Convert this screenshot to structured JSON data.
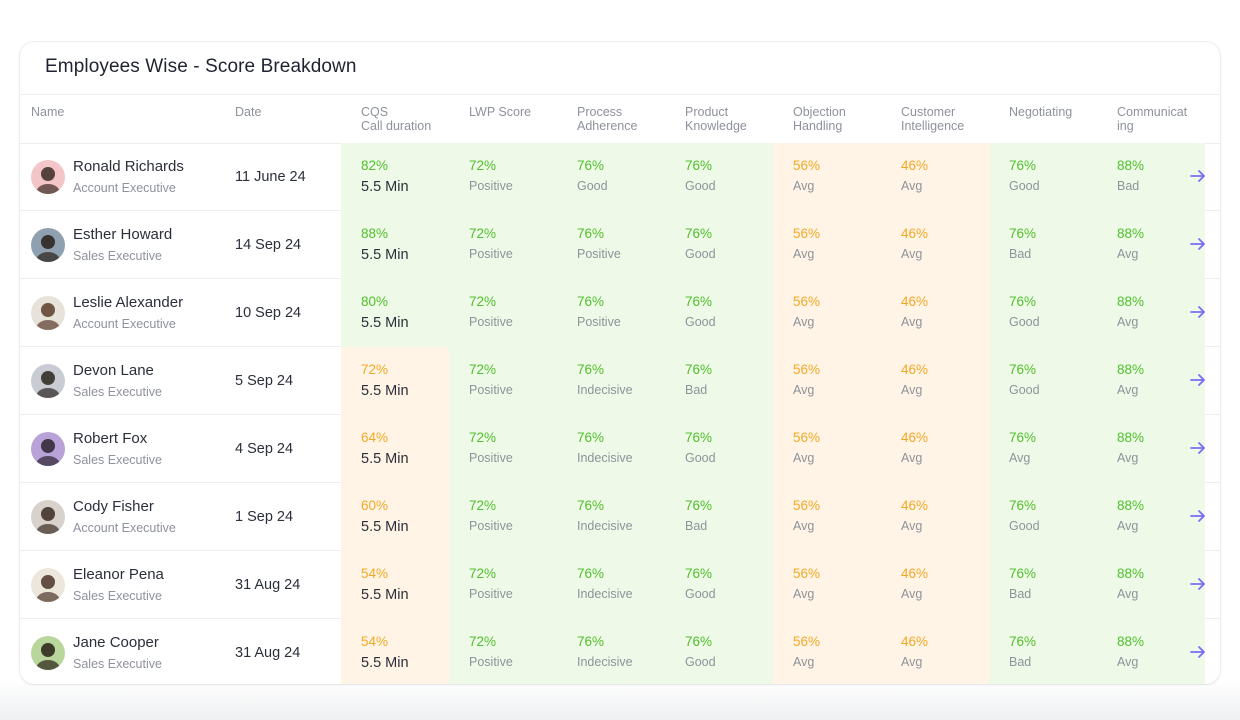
{
  "title": "Employees Wise - Score Breakdown",
  "columns": [
    {
      "key": "name",
      "lines": [
        "Name"
      ]
    },
    {
      "key": "date",
      "lines": [
        "Date"
      ]
    },
    {
      "key": "cqs",
      "lines": [
        "CQS",
        "Call duration"
      ]
    },
    {
      "key": "lwp",
      "lines": [
        "LWP Score"
      ]
    },
    {
      "key": "process",
      "lines": [
        "Process",
        "Adherence"
      ]
    },
    {
      "key": "product",
      "lines": [
        "Product",
        "Knowledge"
      ]
    },
    {
      "key": "objection",
      "lines": [
        "Objection",
        "Handling"
      ]
    },
    {
      "key": "customer",
      "lines": [
        "Customer",
        "Intelligence"
      ]
    },
    {
      "key": "negotiating",
      "lines": [
        "Negotiating"
      ]
    },
    {
      "key": "communicating",
      "lines": [
        "Communicat",
        "ing"
      ]
    }
  ],
  "colors": {
    "green_text": "#4fbf2c",
    "orange_text": "#f3a825",
    "green_bg": "#eefae7",
    "orange_bg": "#fff4e5",
    "arrow": "#7b6cf6"
  },
  "rows": [
    {
      "name": "Ronald Richards",
      "role": "Account Executive",
      "date": "11 June 24",
      "cqs": "82%",
      "cqs_tone": "green",
      "duration": "5.5 Min",
      "lwp": "72%",
      "lwp_label": "Positive",
      "process": "76%",
      "process_label": "Good",
      "product": "76%",
      "product_label": "Good",
      "objection": "56%",
      "objection_label": "Avg",
      "customer": "46%",
      "customer_label": "Avg",
      "negotiating": "76%",
      "negotiating_label": "Good",
      "communicating": "88%",
      "communicating_label": "Bad",
      "avatar": "avatar-pink",
      "row_action_icon": "arrow-right-icon"
    },
    {
      "name": "Esther Howard",
      "role": "Sales Executive",
      "date": "14 Sep 24",
      "cqs": "88%",
      "cqs_tone": "green",
      "duration": "5.5 Min",
      "lwp": "72%",
      "lwp_label": "Positive",
      "process": "76%",
      "process_label": "Positive",
      "product": "76%",
      "product_label": "Good",
      "objection": "56%",
      "objection_label": "Avg",
      "customer": "46%",
      "customer_label": "Avg",
      "negotiating": "76%",
      "negotiating_label": "Bad",
      "communicating": "88%",
      "communicating_label": "Avg",
      "avatar": "avatar-dark",
      "row_action_icon": "arrow-right-icon"
    },
    {
      "name": "Leslie Alexander",
      "role": "Account Executive",
      "date": "10 Sep 24",
      "cqs": "80%",
      "cqs_tone": "green",
      "duration": "5.5 Min",
      "lwp": "72%",
      "lwp_label": "Positive",
      "process": "76%",
      "process_label": "Positive",
      "product": "76%",
      "product_label": "Good",
      "objection": "56%",
      "objection_label": "Avg",
      "customer": "46%",
      "customer_label": "Avg",
      "negotiating": "76%",
      "negotiating_label": "Good",
      "communicating": "88%",
      "communicating_label": "Avg",
      "avatar": "avatar-light",
      "row_action_icon": "arrow-right-icon"
    },
    {
      "name": "Devon Lane",
      "role": "Sales Executive",
      "date": "5 Sep 24",
      "cqs": "72%",
      "cqs_tone": "orange",
      "duration": "5.5 Min",
      "lwp": "72%",
      "lwp_label": "Positive",
      "process": "76%",
      "process_label": "Indecisive",
      "product": "76%",
      "product_label": "Bad",
      "objection": "56%",
      "objection_label": "Avg",
      "customer": "46%",
      "customer_label": "Avg",
      "negotiating": "76%",
      "negotiating_label": "Good",
      "communicating": "88%",
      "communicating_label": "Avg",
      "avatar": "avatar-gray",
      "row_action_icon": "arrow-right-icon"
    },
    {
      "name": "Robert Fox",
      "role": "Sales Executive",
      "date": "4 Sep 24",
      "cqs": "64%",
      "cqs_tone": "orange",
      "duration": "5.5 Min",
      "lwp": "72%",
      "lwp_label": "Positive",
      "process": "76%",
      "process_label": "Indecisive",
      "product": "76%",
      "product_label": "Good",
      "objection": "56%",
      "objection_label": "Avg",
      "customer": "46%",
      "customer_label": "Avg",
      "negotiating": "76%",
      "negotiating_label": "Avg",
      "communicating": "88%",
      "communicating_label": "Avg",
      "avatar": "avatar-purple",
      "row_action_icon": "arrow-right-icon"
    },
    {
      "name": "Cody Fisher",
      "role": "Account Executive",
      "date": "1 Sep 24",
      "cqs": "60%",
      "cqs_tone": "orange",
      "duration": "5.5 Min",
      "lwp": "72%",
      "lwp_label": "Positive",
      "process": "76%",
      "process_label": "Indecisive",
      "product": "76%",
      "product_label": "Bad",
      "objection": "56%",
      "objection_label": "Avg",
      "customer": "46%",
      "customer_label": "Avg",
      "negotiating": "76%",
      "negotiating_label": "Good",
      "communicating": "88%",
      "communicating_label": "Avg",
      "avatar": "avatar-brown",
      "row_action_icon": "arrow-right-icon"
    },
    {
      "name": "Eleanor Pena",
      "role": "Sales Executive",
      "date": "31 Aug 24",
      "cqs": "54%",
      "cqs_tone": "orange",
      "duration": "5.5 Min",
      "lwp": "72%",
      "lwp_label": "Positive",
      "process": "76%",
      "process_label": "Indecisive",
      "product": "76%",
      "product_label": "Good",
      "objection": "56%",
      "objection_label": "Avg",
      "customer": "46%",
      "customer_label": "Avg",
      "negotiating": "76%",
      "negotiating_label": "Bad",
      "communicating": "88%",
      "communicating_label": "Avg",
      "avatar": "avatar-beige",
      "row_action_icon": "arrow-right-icon"
    },
    {
      "name": "Jane Cooper",
      "role": "Sales Executive",
      "date": "31 Aug 24",
      "cqs": "54%",
      "cqs_tone": "orange",
      "duration": "5.5 Min",
      "lwp": "72%",
      "lwp_label": "Positive",
      "process": "76%",
      "process_label": "Indecisive",
      "product": "76%",
      "product_label": "Good",
      "objection": "56%",
      "objection_label": "Avg",
      "customer": "46%",
      "customer_label": "Avg",
      "negotiating": "76%",
      "negotiating_label": "Bad",
      "communicating": "88%",
      "communicating_label": "Avg",
      "avatar": "avatar-green",
      "row_action_icon": "arrow-right-icon"
    }
  ]
}
